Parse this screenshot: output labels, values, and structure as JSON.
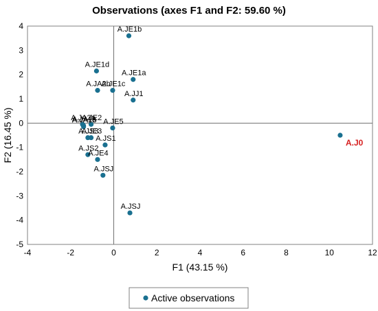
{
  "chart_data": {
    "type": "scatter",
    "title": "Observations (axes F1 and F2: 59.60 %)",
    "xlabel": "F1 (43.15 %)",
    "ylabel": "F2 (16.45 %)",
    "xlim": [
      -4,
      12
    ],
    "ylim": [
      -5,
      4
    ],
    "xticks": [
      -4,
      -2,
      0,
      2,
      4,
      6,
      8,
      10,
      12
    ],
    "yticks": [
      -5,
      -4,
      -3,
      -2,
      -1,
      0,
      1,
      2,
      3,
      4
    ],
    "grid": false,
    "legend_position": "bottom",
    "marker_color": "#1a7090",
    "highlight_color": "#d62020",
    "series": [
      {
        "name": "Active observations",
        "points": [
          {
            "label": "A.JE1b",
            "x": 0.7,
            "y": 3.6
          },
          {
            "label": "A.JE1d",
            "x": -0.8,
            "y": 2.15
          },
          {
            "label": "A.JE1a",
            "x": 0.9,
            "y": 1.8
          },
          {
            "label": "A.JA2b",
            "x": -0.75,
            "y": 1.35
          },
          {
            "label": "A.JE1c",
            "x": -0.05,
            "y": 1.35
          },
          {
            "label": "A.JJ1",
            "x": 0.9,
            "y": 0.95
          },
          {
            "label": "A.JA2a",
            "x": -1.45,
            "y": -0.05
          },
          {
            "label": "A.JE2",
            "x": -1.05,
            "y": -0.05
          },
          {
            "label": "A.JA1b",
            "x": -1.4,
            "y": -0.15
          },
          {
            "label": "A.JA1a",
            "x": -1.4,
            "y": -0.1
          },
          {
            "label": "A.JE5",
            "x": -0.05,
            "y": -0.2
          },
          {
            "label": "A.JS3",
            "x": -1.2,
            "y": -0.6
          },
          {
            "label": "A.JE3",
            "x": -1.05,
            "y": -0.6
          },
          {
            "label": "A.JS1",
            "x": -0.4,
            "y": -0.9
          },
          {
            "label": "A.JS2",
            "x": -1.2,
            "y": -1.3
          },
          {
            "label": "A.JE4",
            "x": -0.75,
            "y": -1.5
          },
          {
            "label": "A.JSJ",
            "x": -0.5,
            "y": -2.15
          },
          {
            "label": "A.JSJ",
            "x": 0.75,
            "y": -3.7
          },
          {
            "label": "A.J0",
            "x": 10.5,
            "y": -0.5,
            "highlight": true
          }
        ]
      }
    ]
  }
}
